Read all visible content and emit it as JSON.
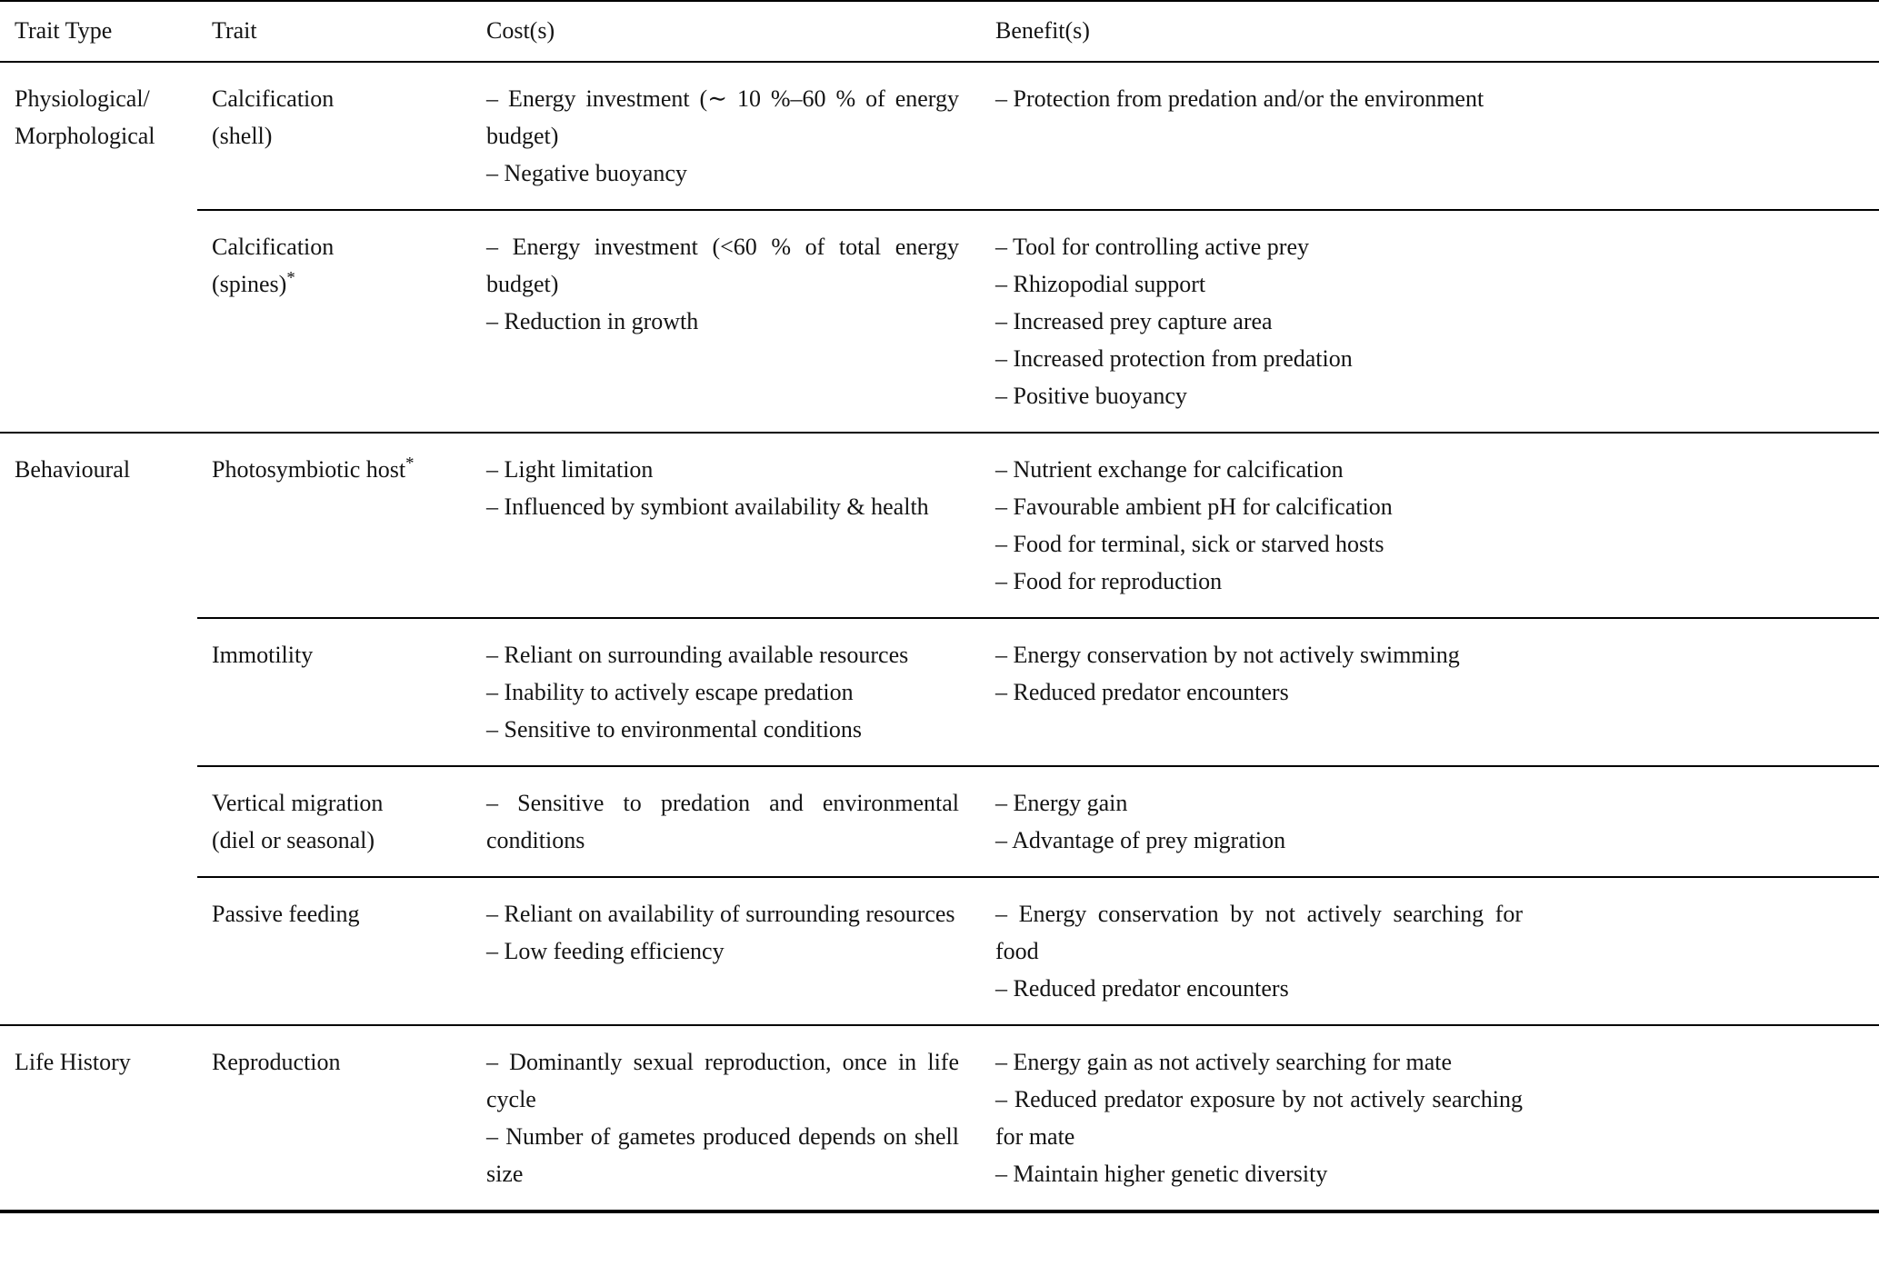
{
  "meta": {
    "background": "#ffffff",
    "text_color": "#141414",
    "rule_color": "#000000"
  },
  "table": {
    "columns": [
      "Trait Type",
      "Trait",
      "Cost(s)",
      "Benefit(s)"
    ],
    "groups": [
      {
        "trait_type": [
          "Physiological/",
          "Morphological"
        ],
        "rows": [
          {
            "trait": [
              "Calcification",
              "(shell)"
            ],
            "costs": [
              "– Energy investment (∼ 10 %–60 % of energy budget)",
              "– Negative buoyancy"
            ],
            "benefits": [
              "– Protection from predation and/or the environment"
            ]
          },
          {
            "trait": [
              "Calcification",
              "(spines)*"
            ],
            "costs": [
              "– Energy investment (<60 % of total energy budget)",
              "– Reduction in growth"
            ],
            "benefits": [
              "– Tool for controlling active prey",
              "– Rhizopodial support",
              "– Increased prey capture area",
              "– Increased protection from predation",
              "– Positive buoyancy"
            ]
          }
        ]
      },
      {
        "trait_type": [
          "Behavioural"
        ],
        "rows": [
          {
            "trait": [
              "Photosymbiotic host*"
            ],
            "costs": [
              "– Light limitation",
              "– Influenced by symbiont availability & health"
            ],
            "benefits": [
              "– Nutrient exchange for calcification",
              "– Favourable ambient pH for calcification",
              "– Food for terminal, sick or starved hosts",
              "– Food for reproduction"
            ]
          },
          {
            "trait": [
              "Immotility"
            ],
            "costs": [
              "– Reliant on surrounding available resources",
              "– Inability to actively escape predation",
              "– Sensitive to environmental conditions"
            ],
            "benefits": [
              "– Energy conservation by not actively swimming",
              "– Reduced predator encounters"
            ]
          },
          {
            "trait": [
              "Vertical migration",
              "(diel or seasonal)"
            ],
            "costs": [
              "– Sensitive to predation and environmental conditions"
            ],
            "benefits": [
              "– Energy gain",
              "– Advantage of prey migration"
            ]
          },
          {
            "trait": [
              "Passive feeding"
            ],
            "costs": [
              "– Reliant on availability of surrounding resources",
              "– Low feeding efficiency"
            ],
            "benefits": [
              "– Energy conservation by not actively searching for food",
              "– Reduced predator encounters"
            ]
          }
        ]
      },
      {
        "trait_type": [
          "Life History"
        ],
        "rows": [
          {
            "trait": [
              "Reproduction"
            ],
            "costs": [
              "– Dominantly sexual reproduction, once in life cycle",
              "– Number of gametes produced depends on shell size"
            ],
            "benefits": [
              "– Energy gain as not actively searching for mate",
              "– Reduced predator exposure by not actively searching for mate",
              "– Maintain higher genetic diversity"
            ]
          }
        ]
      }
    ]
  }
}
